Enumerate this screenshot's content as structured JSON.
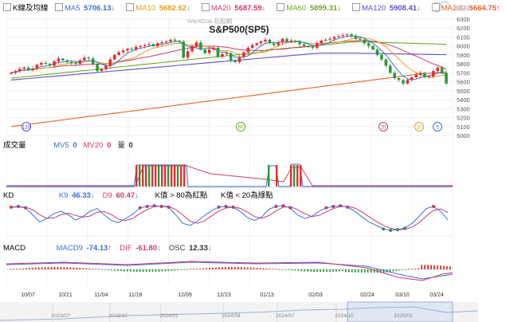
{
  "window": {
    "brand": "WantGoo 玩股網",
    "logo_text": "玩股網"
  },
  "legends": {
    "price": {
      "title": "K線及均線",
      "items": [
        {
          "label": "MA5",
          "value": "5706.13",
          "arrow": "↓",
          "color": "#3b6fd6"
        },
        {
          "label": "MA10",
          "value": "5682.62",
          "arrow": "↓",
          "color": "#e0a020"
        },
        {
          "label": "MA20",
          "value": "5687.59",
          "arrow": "↓",
          "color": "#d03a6a"
        },
        {
          "label": "MA60",
          "value": "5899.31",
          "arrow": "↓",
          "color": "#6aaa2a"
        },
        {
          "label": "MA120",
          "value": "5908.41",
          "arrow": "↓",
          "color": "#6a4ac8"
        },
        {
          "label": "MA240",
          "value": "5664.75",
          "arrow": "↑",
          "color": "#e8602a"
        }
      ]
    },
    "volume": {
      "title": "成交量",
      "items": [
        {
          "label": "MV5",
          "value": "0",
          "arrow": "",
          "color": "#3b6fd6"
        },
        {
          "label": "MV20",
          "value": "0",
          "arrow": "",
          "color": "#d03a6a"
        },
        {
          "label": "量",
          "value": "0",
          "arrow": "",
          "color": "#333333"
        }
      ]
    },
    "kd": {
      "title": "KD",
      "items": [
        {
          "label": "K9",
          "value": "46.33",
          "arrow": "↓",
          "color": "#3b6fd6"
        },
        {
          "label": "D9",
          "value": "60.47",
          "arrow": "↓",
          "color": "#d03a6a"
        }
      ],
      "notes": [
        "K值 > 80為紅點",
        "K值 < 20為綠點"
      ]
    },
    "macd": {
      "title": "MACD",
      "items": [
        {
          "label": "MACD9",
          "value": "-74.13",
          "arrow": "↑",
          "color": "#3b6fd6"
        },
        {
          "label": "DIF",
          "value": "-61.80",
          "arrow": "↓",
          "color": "#d03a6a"
        },
        {
          "label": "OSC",
          "value": "12.33",
          "arrow": "↓",
          "color": "#333333"
        }
      ]
    }
  },
  "chart_data": {
    "type": "candlestick",
    "title": "S&P500(SP5)",
    "y_ticks": [
      5000,
      5100,
      5200,
      5300,
      5400,
      5500,
      5600,
      5700,
      5800,
      5900,
      6000,
      6100,
      6200,
      6300
    ],
    "ylim": [
      5000,
      6300
    ],
    "x_tick_labels": [
      "10/07",
      "10/21",
      "11/04",
      "11/18",
      "12/09",
      "12/23",
      "01/13",
      "02/03",
      "02/24",
      "03/10",
      "03/24"
    ],
    "navigator_labels": [
      "2023/07",
      "2023/10",
      "2024/01",
      "2024/04",
      "2024/07",
      "2024/10",
      "2025/01"
    ],
    "markers": [
      {
        "label": "120",
        "color": "#6a4ac8"
      },
      {
        "label": "60",
        "color": "#6aaa2a"
      },
      {
        "label": "20",
        "color": "#d03a6a"
      },
      {
        "label": "10",
        "color": "#e0a020"
      },
      {
        "label": "5",
        "color": "#3b6fd6"
      }
    ],
    "close_path": [
      5700,
      5720,
      5745,
      5760,
      5730,
      5750,
      5790,
      5810,
      5800,
      5780,
      5830,
      5860,
      5840,
      5820,
      5810,
      5800,
      5840,
      5870,
      5860,
      5800,
      5720,
      5740,
      5780,
      5850,
      5900,
      5930,
      5950,
      5970,
      5960,
      5990,
      6000,
      6010,
      6020,
      6000,
      6030,
      6040,
      6050,
      6070,
      6060,
      6050,
      5870,
      5940,
      6000,
      6040,
      5960,
      5920,
      5960,
      5980,
      5880,
      5910,
      5920,
      5840,
      5820,
      5880,
      5930,
      5980,
      6010,
      6030,
      6050,
      6070,
      6030,
      6010,
      6040,
      6080,
      6050,
      6060,
      6050,
      6020,
      6000,
      5990,
      5980,
      6030,
      6060,
      6070,
      6080,
      6100,
      6110,
      6120,
      6130,
      6110,
      6080,
      6070,
      6030,
      6000,
      5960,
      5900,
      5850,
      5780,
      5700,
      5640,
      5620,
      5580,
      5620,
      5650,
      5680,
      5700,
      5650,
      5660,
      5720,
      5760,
      5700,
      5580
    ]
  }
}
